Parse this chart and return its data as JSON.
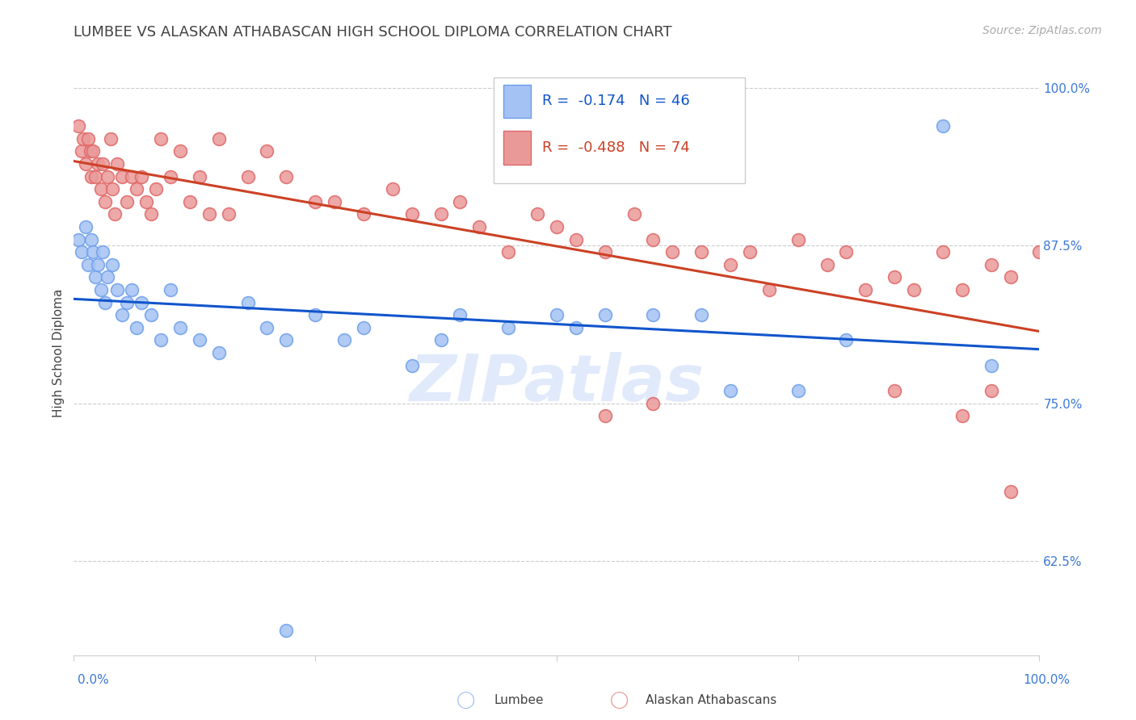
{
  "title": "LUMBEE VS ALASKAN ATHABASCAN HIGH SCHOOL DIPLOMA CORRELATION CHART",
  "source": "Source: ZipAtlas.com",
  "ylabel": "High School Diploma",
  "xlim": [
    0.0,
    1.0
  ],
  "ylim": [
    0.55,
    1.03
  ],
  "yticks": [
    0.625,
    0.75,
    0.875,
    1.0
  ],
  "ytick_labels": [
    "62.5%",
    "75.0%",
    "87.5%",
    "100.0%"
  ],
  "legend_lumbee_r": "-0.174",
  "legend_lumbee_n": "46",
  "legend_athabascan_r": "-0.488",
  "legend_athabascan_n": "74",
  "blue_scatter_color": "#a4c2f4",
  "blue_edge_color": "#6d9eeb",
  "pink_scatter_color": "#ea9999",
  "pink_edge_color": "#e06666",
  "blue_line_color": "#1155cc",
  "pink_line_color": "#cc4125",
  "watermark": "ZIPatlas",
  "background_color": "#ffffff",
  "grid_color": "#cccccc",
  "title_color": "#434343",
  "label_color": "#3c78d8",
  "tick_label_color": "#3c78d8",
  "ylabel_color": "#434343",
  "title_fontsize": 13,
  "ylabel_fontsize": 11,
  "tick_fontsize": 11,
  "source_fontsize": 10,
  "legend_fontsize": 13,
  "lumbee_x": [
    0.005,
    0.008,
    0.012,
    0.015,
    0.018,
    0.02,
    0.022,
    0.025,
    0.028,
    0.03,
    0.032,
    0.035,
    0.04,
    0.045,
    0.05,
    0.055,
    0.06,
    0.065,
    0.07,
    0.08,
    0.09,
    0.1,
    0.11,
    0.13,
    0.15,
    0.18,
    0.2,
    0.22,
    0.25,
    0.28,
    0.3,
    0.35,
    0.38,
    0.4,
    0.45,
    0.5,
    0.52,
    0.55,
    0.6,
    0.65,
    0.68,
    0.22,
    0.9,
    0.75,
    0.8,
    0.95
  ],
  "lumbee_y": [
    0.88,
    0.87,
    0.89,
    0.86,
    0.88,
    0.87,
    0.85,
    0.86,
    0.84,
    0.87,
    0.83,
    0.85,
    0.86,
    0.84,
    0.82,
    0.83,
    0.84,
    0.81,
    0.83,
    0.82,
    0.8,
    0.84,
    0.81,
    0.8,
    0.79,
    0.83,
    0.81,
    0.8,
    0.82,
    0.8,
    0.81,
    0.78,
    0.8,
    0.82,
    0.81,
    0.82,
    0.81,
    0.82,
    0.82,
    0.82,
    0.76,
    0.57,
    0.97,
    0.76,
    0.8,
    0.78
  ],
  "athabascan_x": [
    0.005,
    0.008,
    0.01,
    0.012,
    0.015,
    0.017,
    0.018,
    0.02,
    0.022,
    0.025,
    0.028,
    0.03,
    0.032,
    0.035,
    0.038,
    0.04,
    0.042,
    0.045,
    0.05,
    0.055,
    0.06,
    0.065,
    0.07,
    0.075,
    0.08,
    0.085,
    0.09,
    0.1,
    0.11,
    0.12,
    0.13,
    0.14,
    0.15,
    0.16,
    0.18,
    0.2,
    0.22,
    0.25,
    0.27,
    0.3,
    0.33,
    0.35,
    0.38,
    0.4,
    0.42,
    0.45,
    0.48,
    0.5,
    0.52,
    0.55,
    0.58,
    0.6,
    0.62,
    0.65,
    0.68,
    0.7,
    0.72,
    0.75,
    0.78,
    0.8,
    0.82,
    0.85,
    0.87,
    0.9,
    0.92,
    0.95,
    0.97,
    1.0,
    0.85,
    0.92,
    0.95,
    0.97,
    0.55,
    0.6
  ],
  "athabascan_y": [
    0.97,
    0.95,
    0.96,
    0.94,
    0.96,
    0.95,
    0.93,
    0.95,
    0.93,
    0.94,
    0.92,
    0.94,
    0.91,
    0.93,
    0.96,
    0.92,
    0.9,
    0.94,
    0.93,
    0.91,
    0.93,
    0.92,
    0.93,
    0.91,
    0.9,
    0.92,
    0.96,
    0.93,
    0.95,
    0.91,
    0.93,
    0.9,
    0.96,
    0.9,
    0.93,
    0.95,
    0.93,
    0.91,
    0.91,
    0.9,
    0.92,
    0.9,
    0.9,
    0.91,
    0.89,
    0.87,
    0.9,
    0.89,
    0.88,
    0.87,
    0.9,
    0.88,
    0.87,
    0.87,
    0.86,
    0.87,
    0.84,
    0.88,
    0.86,
    0.87,
    0.84,
    0.85,
    0.84,
    0.87,
    0.84,
    0.86,
    0.85,
    0.87,
    0.76,
    0.74,
    0.76,
    0.68,
    0.74,
    0.75
  ]
}
